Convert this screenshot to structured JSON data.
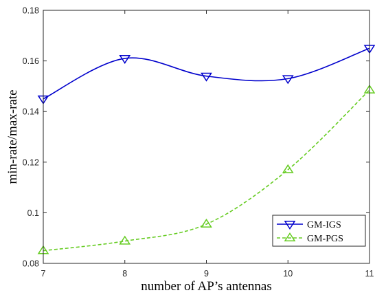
{
  "chart_data": {
    "type": "line",
    "xlabel": "number of AP’s antennas",
    "ylabel": "min-rate/max-rate",
    "x": [
      7,
      8,
      9,
      10,
      11
    ],
    "xlim": [
      7,
      11
    ],
    "ylim": [
      0.08,
      0.18
    ],
    "xticks": [
      7,
      8,
      9,
      10,
      11
    ],
    "yticks": [
      0.08,
      0.1,
      0.12,
      0.14,
      0.16,
      0.18
    ],
    "xtick_labels": [
      "7",
      "8",
      "9",
      "10",
      "11"
    ],
    "ytick_labels": [
      "0.08",
      "0.1",
      "0.12",
      "0.14",
      "0.16",
      "0.18"
    ],
    "grid": false,
    "legend_position": "bottom-right",
    "series": [
      {
        "name": "GM-IGS",
        "values": [
          0.145,
          0.161,
          0.154,
          0.153,
          0.165
        ],
        "color": "#0000cc",
        "line_style": "solid",
        "marker": "triangle-down"
      },
      {
        "name": "GM-PGS",
        "values": [
          0.085,
          0.0888,
          0.0955,
          0.117,
          0.1485
        ],
        "color": "#66cc22",
        "line_style": "dashed",
        "marker": "triangle-up"
      }
    ]
  }
}
